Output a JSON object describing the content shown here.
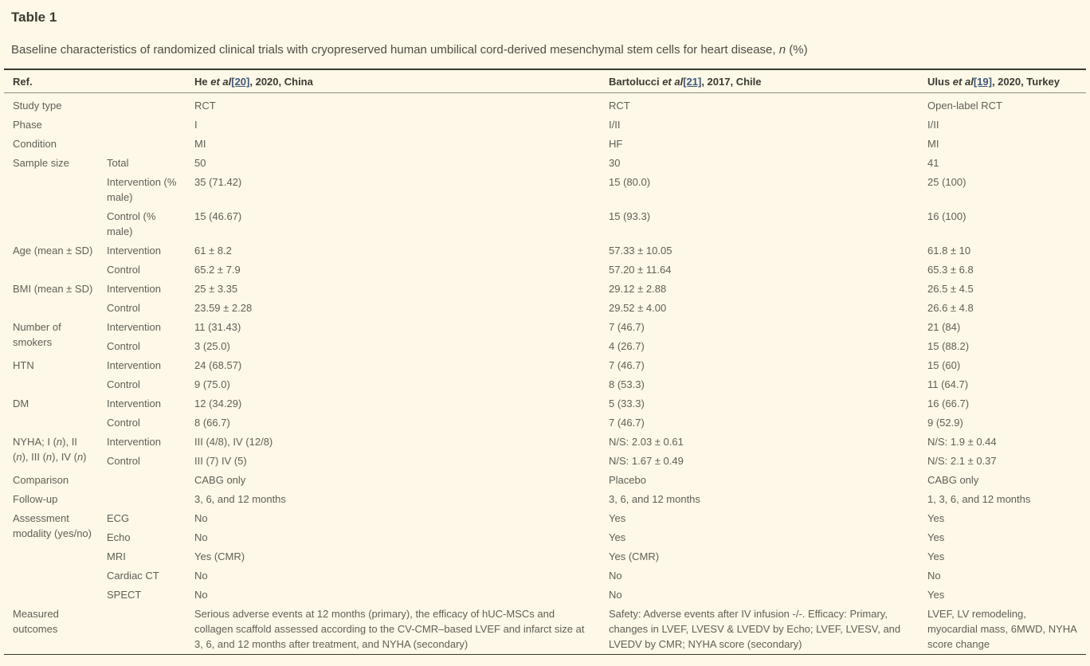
{
  "page": {
    "title": "Table 1"
  },
  "caption": {
    "segments": [
      {
        "t": "Baseline characteristics of randomized clinical trials with cryopreserved human umbilical cord-derived mesenchymal stem cells for heart disease, "
      },
      {
        "t": "n",
        "style": "i"
      },
      {
        "t": " (%)"
      }
    ]
  },
  "colors": {
    "background": "#fdf8e7",
    "border_dark": "#3a3933",
    "border_light": "#8f8d83",
    "heading_text": "#3b3a33",
    "body_text": "#615f57",
    "link": "#3f5878"
  },
  "table": {
    "header": {
      "ref_label": "Ref.",
      "studies": [
        {
          "segments": [
            {
              "t": "He "
            },
            {
              "t": "et al",
              "style": "i"
            },
            {
              "t": "[20]",
              "style": "link"
            },
            {
              "t": ", 2020, China"
            }
          ]
        },
        {
          "segments": [
            {
              "t": "Bartolucci "
            },
            {
              "t": "et al",
              "style": "i"
            },
            {
              "t": "[21]",
              "style": "link"
            },
            {
              "t": ", 2017, Chile"
            }
          ]
        },
        {
          "segments": [
            {
              "t": "Ulus "
            },
            {
              "t": "et al",
              "style": "i"
            },
            {
              "t": "[19]",
              "style": "link"
            },
            {
              "t": ", 2020, Turkey"
            }
          ]
        }
      ]
    },
    "rows": [
      {
        "label": "Study type",
        "sub": "",
        "cells": [
          "RCT",
          "RCT",
          "Open-label RCT"
        ]
      },
      {
        "label": "Phase",
        "sub": "",
        "cells": [
          "I",
          "I/II",
          "I/II"
        ]
      },
      {
        "label": "Condition",
        "sub": "",
        "cells": [
          "MI",
          "HF",
          "MI"
        ]
      },
      {
        "label": "Sample size",
        "span": 3,
        "sub": "Total",
        "cells": [
          "50",
          "30",
          "41"
        ]
      },
      {
        "sub": "Intervention (% male)",
        "cells": [
          "35 (71.42)",
          "15 (80.0)",
          "25 (100)"
        ]
      },
      {
        "sub": "Control (% male)",
        "cells": [
          "15 (46.67)",
          "15 (93.3)",
          "16 (100)"
        ]
      },
      {
        "label": "Age (mean ± SD)",
        "span": 2,
        "sub": "Intervention",
        "cells": [
          "61 ± 8.2",
          "57.33 ± 10.05",
          "61.8 ± 10"
        ]
      },
      {
        "sub": "Control",
        "cells": [
          "65.2 ± 7.9",
          "57.20 ± 11.64",
          "65.3 ± 6.8"
        ]
      },
      {
        "label": "BMI (mean ± SD)",
        "span": 2,
        "sub": "Intervention",
        "cells": [
          "25 ± 3.35",
          "29.12 ± 2.88",
          "26.5 ± 4.5"
        ]
      },
      {
        "sub": "Control",
        "cells": [
          "23.59 ± 2.28",
          "29.52 ± 4.00",
          "26.6 ± 4.8"
        ]
      },
      {
        "label": "Number of smokers",
        "span": 2,
        "sub": "Intervention",
        "cells": [
          "11 (31.43)",
          "7 (46.7)",
          "21 (84)"
        ]
      },
      {
        "sub": "Control",
        "cells": [
          "3 (25.0)",
          "4 (26.7)",
          "15 (88.2)"
        ]
      },
      {
        "label": "HTN",
        "span": 2,
        "sub": "Intervention",
        "cells": [
          "24 (68.57)",
          "7 (46.7)",
          "15 (60)"
        ]
      },
      {
        "sub": "Control",
        "cells": [
          "9 (75.0)",
          "8 (53.3)",
          "11 (64.7)"
        ]
      },
      {
        "label": "DM",
        "span": 2,
        "sub": "Intervention",
        "cells": [
          "12 (34.29)",
          "5 (33.3)",
          "16 (66.7)"
        ]
      },
      {
        "sub": "Control",
        "cells": [
          "8 (66.7)",
          "7 (46.7)",
          "9 (52.9)"
        ]
      },
      {
        "label_segments": [
          {
            "t": "NYHA; I ("
          },
          {
            "t": "n",
            "style": "i"
          },
          {
            "t": "), II ("
          },
          {
            "t": "n",
            "style": "i"
          },
          {
            "t": "), III ("
          },
          {
            "t": "n",
            "style": "i"
          },
          {
            "t": "), IV ("
          },
          {
            "t": "n",
            "style": "i"
          },
          {
            "t": ")"
          }
        ],
        "span": 2,
        "sub": "Intervention",
        "cells": [
          "III (4/8), IV (12/8)",
          "N/S: 2.03 ± 0.61",
          "N/S: 1.9 ± 0.44"
        ]
      },
      {
        "sub": "Control",
        "cells": [
          "III (7) IV (5)",
          "N/S: 1.67 ± 0.49",
          "N/S: 2.1 ± 0.37"
        ]
      },
      {
        "label": "Comparison",
        "sub": "",
        "cells": [
          "CABG only",
          "Placebo",
          "CABG only"
        ]
      },
      {
        "label": "Follow-up",
        "sub": "",
        "cells": [
          "3, 6, and 12 months",
          "3, 6, and 12 months",
          "1, 3, 6, and 12 months"
        ]
      },
      {
        "label": "Assessment modality (yes/no)",
        "span": 5,
        "sub": "ECG",
        "cells": [
          "No",
          "Yes",
          "Yes"
        ]
      },
      {
        "sub": "Echo",
        "cells": [
          "No",
          "Yes",
          "Yes"
        ]
      },
      {
        "sub": "MRI",
        "cells": [
          "Yes (CMR)",
          "Yes (CMR)",
          "Yes"
        ]
      },
      {
        "sub": "Cardiac CT",
        "cells": [
          "No",
          "No",
          "No"
        ]
      },
      {
        "sub": "SPECT",
        "cells": [
          "No",
          "No",
          "Yes"
        ]
      },
      {
        "label": "Measured outcomes",
        "sub": "",
        "cells": [
          "Serious adverse events at 12 months (primary), the efficacy of hUC-MSCs and collagen scaffold assessed according to the CV-CMR–based LVEF and infarct size at 3, 6, and 12 months after treatment, and NYHA (secondary)",
          "Safety: Adverse events after IV infusion -/-. Efficacy: Primary, changes in LVEF, LVESV & LVEDV by Echo; LVEF, LVESV, and LVEDV by CMR; NYHA score (secondary)",
          "LVEF, LV remodeling, myocardial mass, 6MWD, NYHA score change"
        ]
      }
    ]
  }
}
